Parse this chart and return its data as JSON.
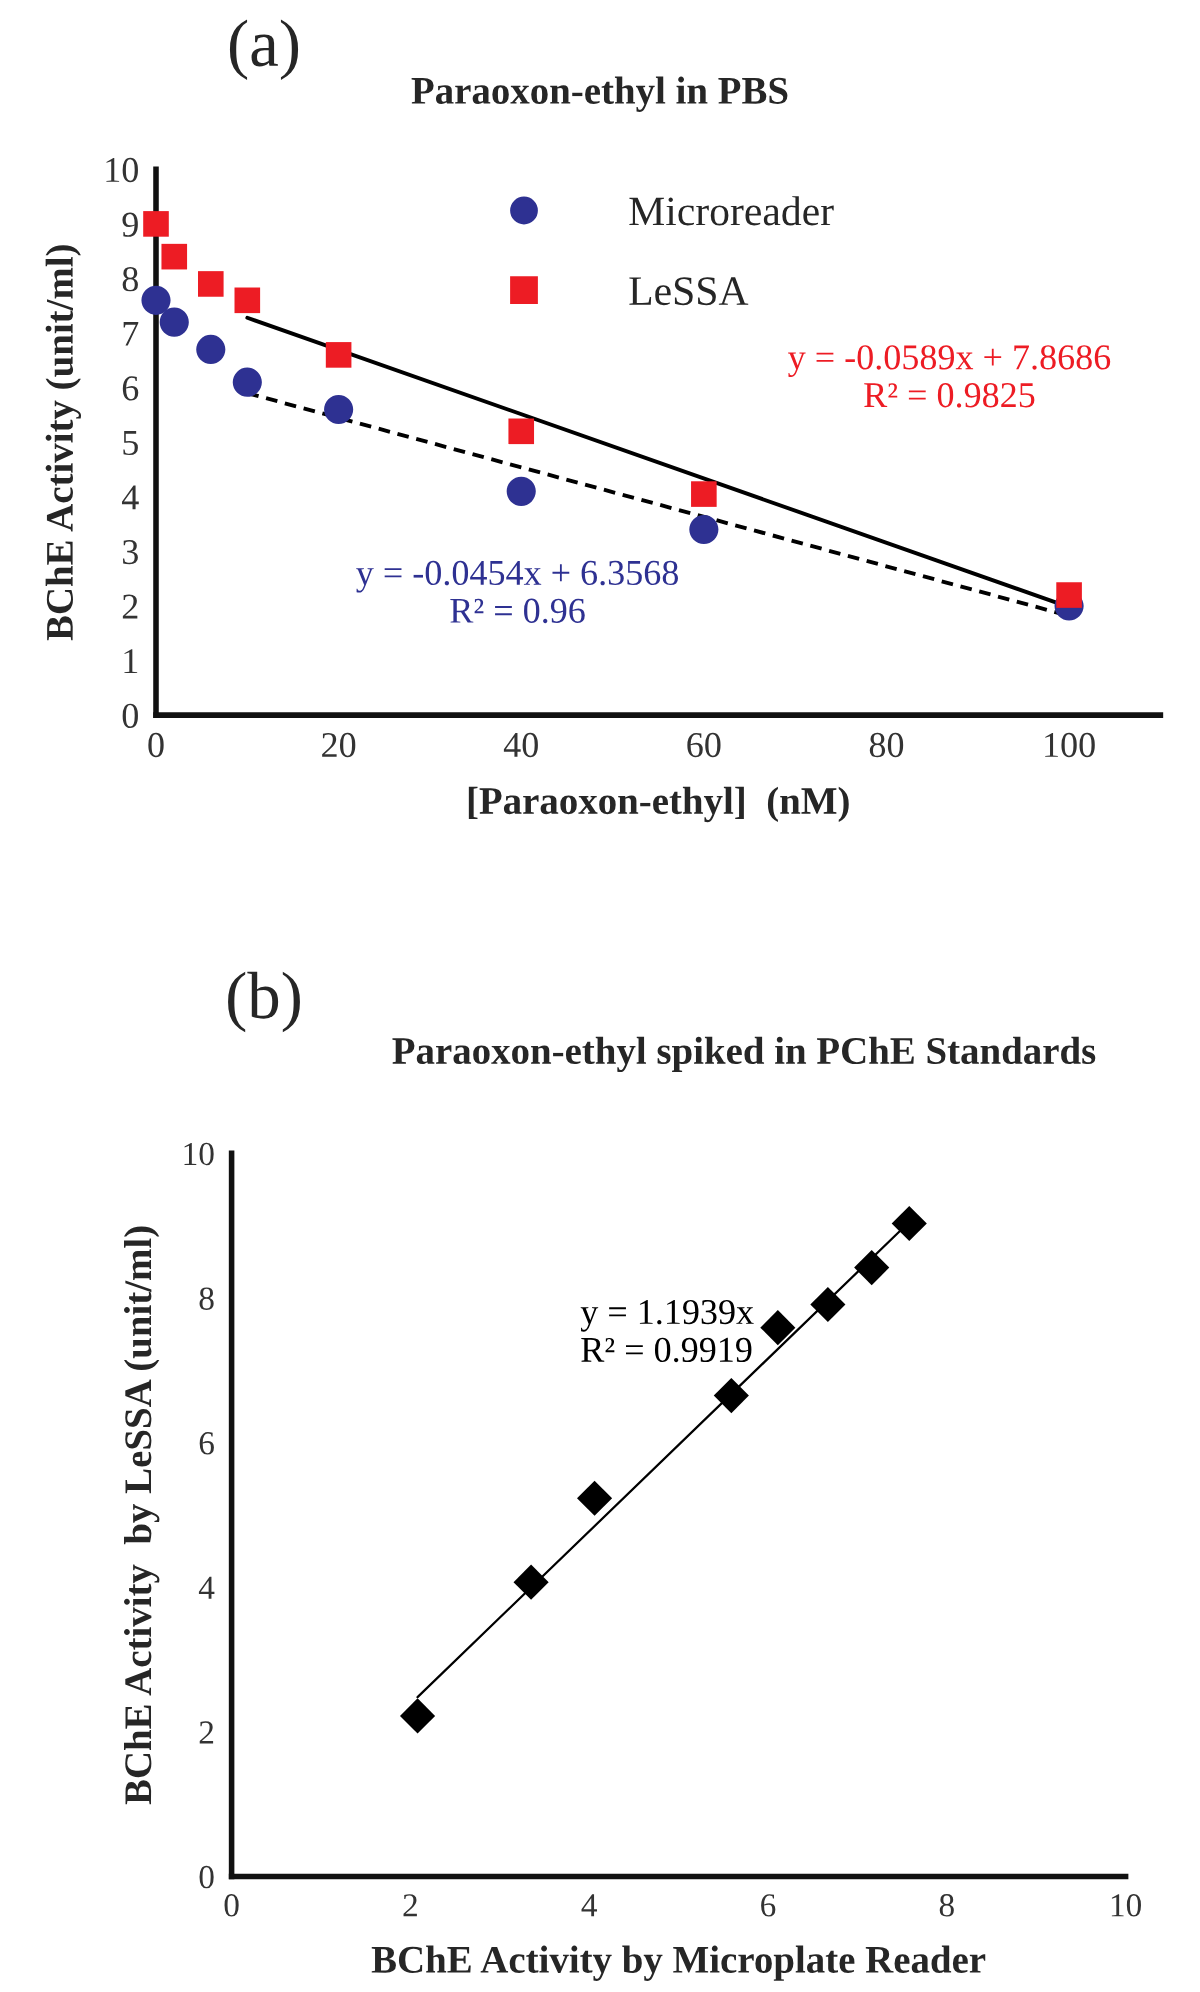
{
  "chart_data": [
    {
      "type": "scatter",
      "title": "Paraoxon-ethyl in PBS",
      "xlabel": "[Paraoxon-ethyl]  (nM)",
      "ylabel": "BChE Activity (unit/ml)",
      "xlim": [
        0,
        110
      ],
      "ylim": [
        0,
        10
      ],
      "xticks": [
        0,
        20,
        40,
        60,
        80,
        100
      ],
      "yticks": [
        0,
        1,
        2,
        3,
        4,
        5,
        6,
        7,
        8,
        9,
        10
      ],
      "grid": false,
      "legend": "top",
      "annotations": [
        "(a)",
        "y = -0.0454x + 6.3568\nR² = 0.96",
        "y = -0.0589x + 7.8686\nR² = 0.9825"
      ],
      "x": [
        0,
        2,
        6,
        10,
        20,
        40,
        60,
        100
      ],
      "series": [
        {
          "name": "Microreader",
          "marker": "circle",
          "color": "#2e3192",
          "values": [
            7.6,
            7.2,
            6.7,
            6.1,
            5.6,
            4.1,
            3.4,
            2.0
          ]
        },
        {
          "name": "LeSSA",
          "marker": "square",
          "color": "#ed1c24",
          "values": [
            9.0,
            8.4,
            7.9,
            7.6,
            6.6,
            5.2,
            4.05,
            2.2
          ]
        },
        {
          "type": "line",
          "line_style": "solid",
          "color": "#000000",
          "x": [
            10,
            100
          ],
          "values": [
            7.28,
            1.98
          ]
        },
        {
          "type": "line",
          "line_style": "dashed",
          "color": "#000000",
          "x": [
            10,
            100
          ],
          "values": [
            5.9,
            1.82
          ]
        }
      ]
    },
    {
      "type": "scatter",
      "title": "Paraoxon-ethyl spiked in PChE Standards",
      "xlabel": "BChE Activity by Microplate Reader",
      "ylabel": "BChE Activity  by LeSSA (unit/ml)",
      "xlim": [
        0,
        10
      ],
      "ylim": [
        0,
        10
      ],
      "xticks": [
        0,
        2,
        4,
        6,
        8,
        10
      ],
      "yticks": [
        0,
        2,
        4,
        6,
        8,
        10
      ],
      "grid": false,
      "legend": false,
      "annotations": [
        "(b)",
        "y = 1.1939x\nR² = 0.9919"
      ],
      "x": [
        7.58,
        7.16,
        6.67,
        6.11,
        5.59,
        4.06,
        3.35,
        2.08
      ],
      "series": [
        {
          "marker": "diamond",
          "color": "#000000",
          "values": [
            9.03,
            8.42,
            7.91,
            7.59,
            6.65,
            5.23,
            4.07,
            2.22
          ]
        },
        {
          "type": "line",
          "line_style": "solid",
          "color": "#000000",
          "x": [
            2.08,
            7.58
          ],
          "values": [
            2.48,
            9.05
          ]
        }
      ]
    }
  ]
}
